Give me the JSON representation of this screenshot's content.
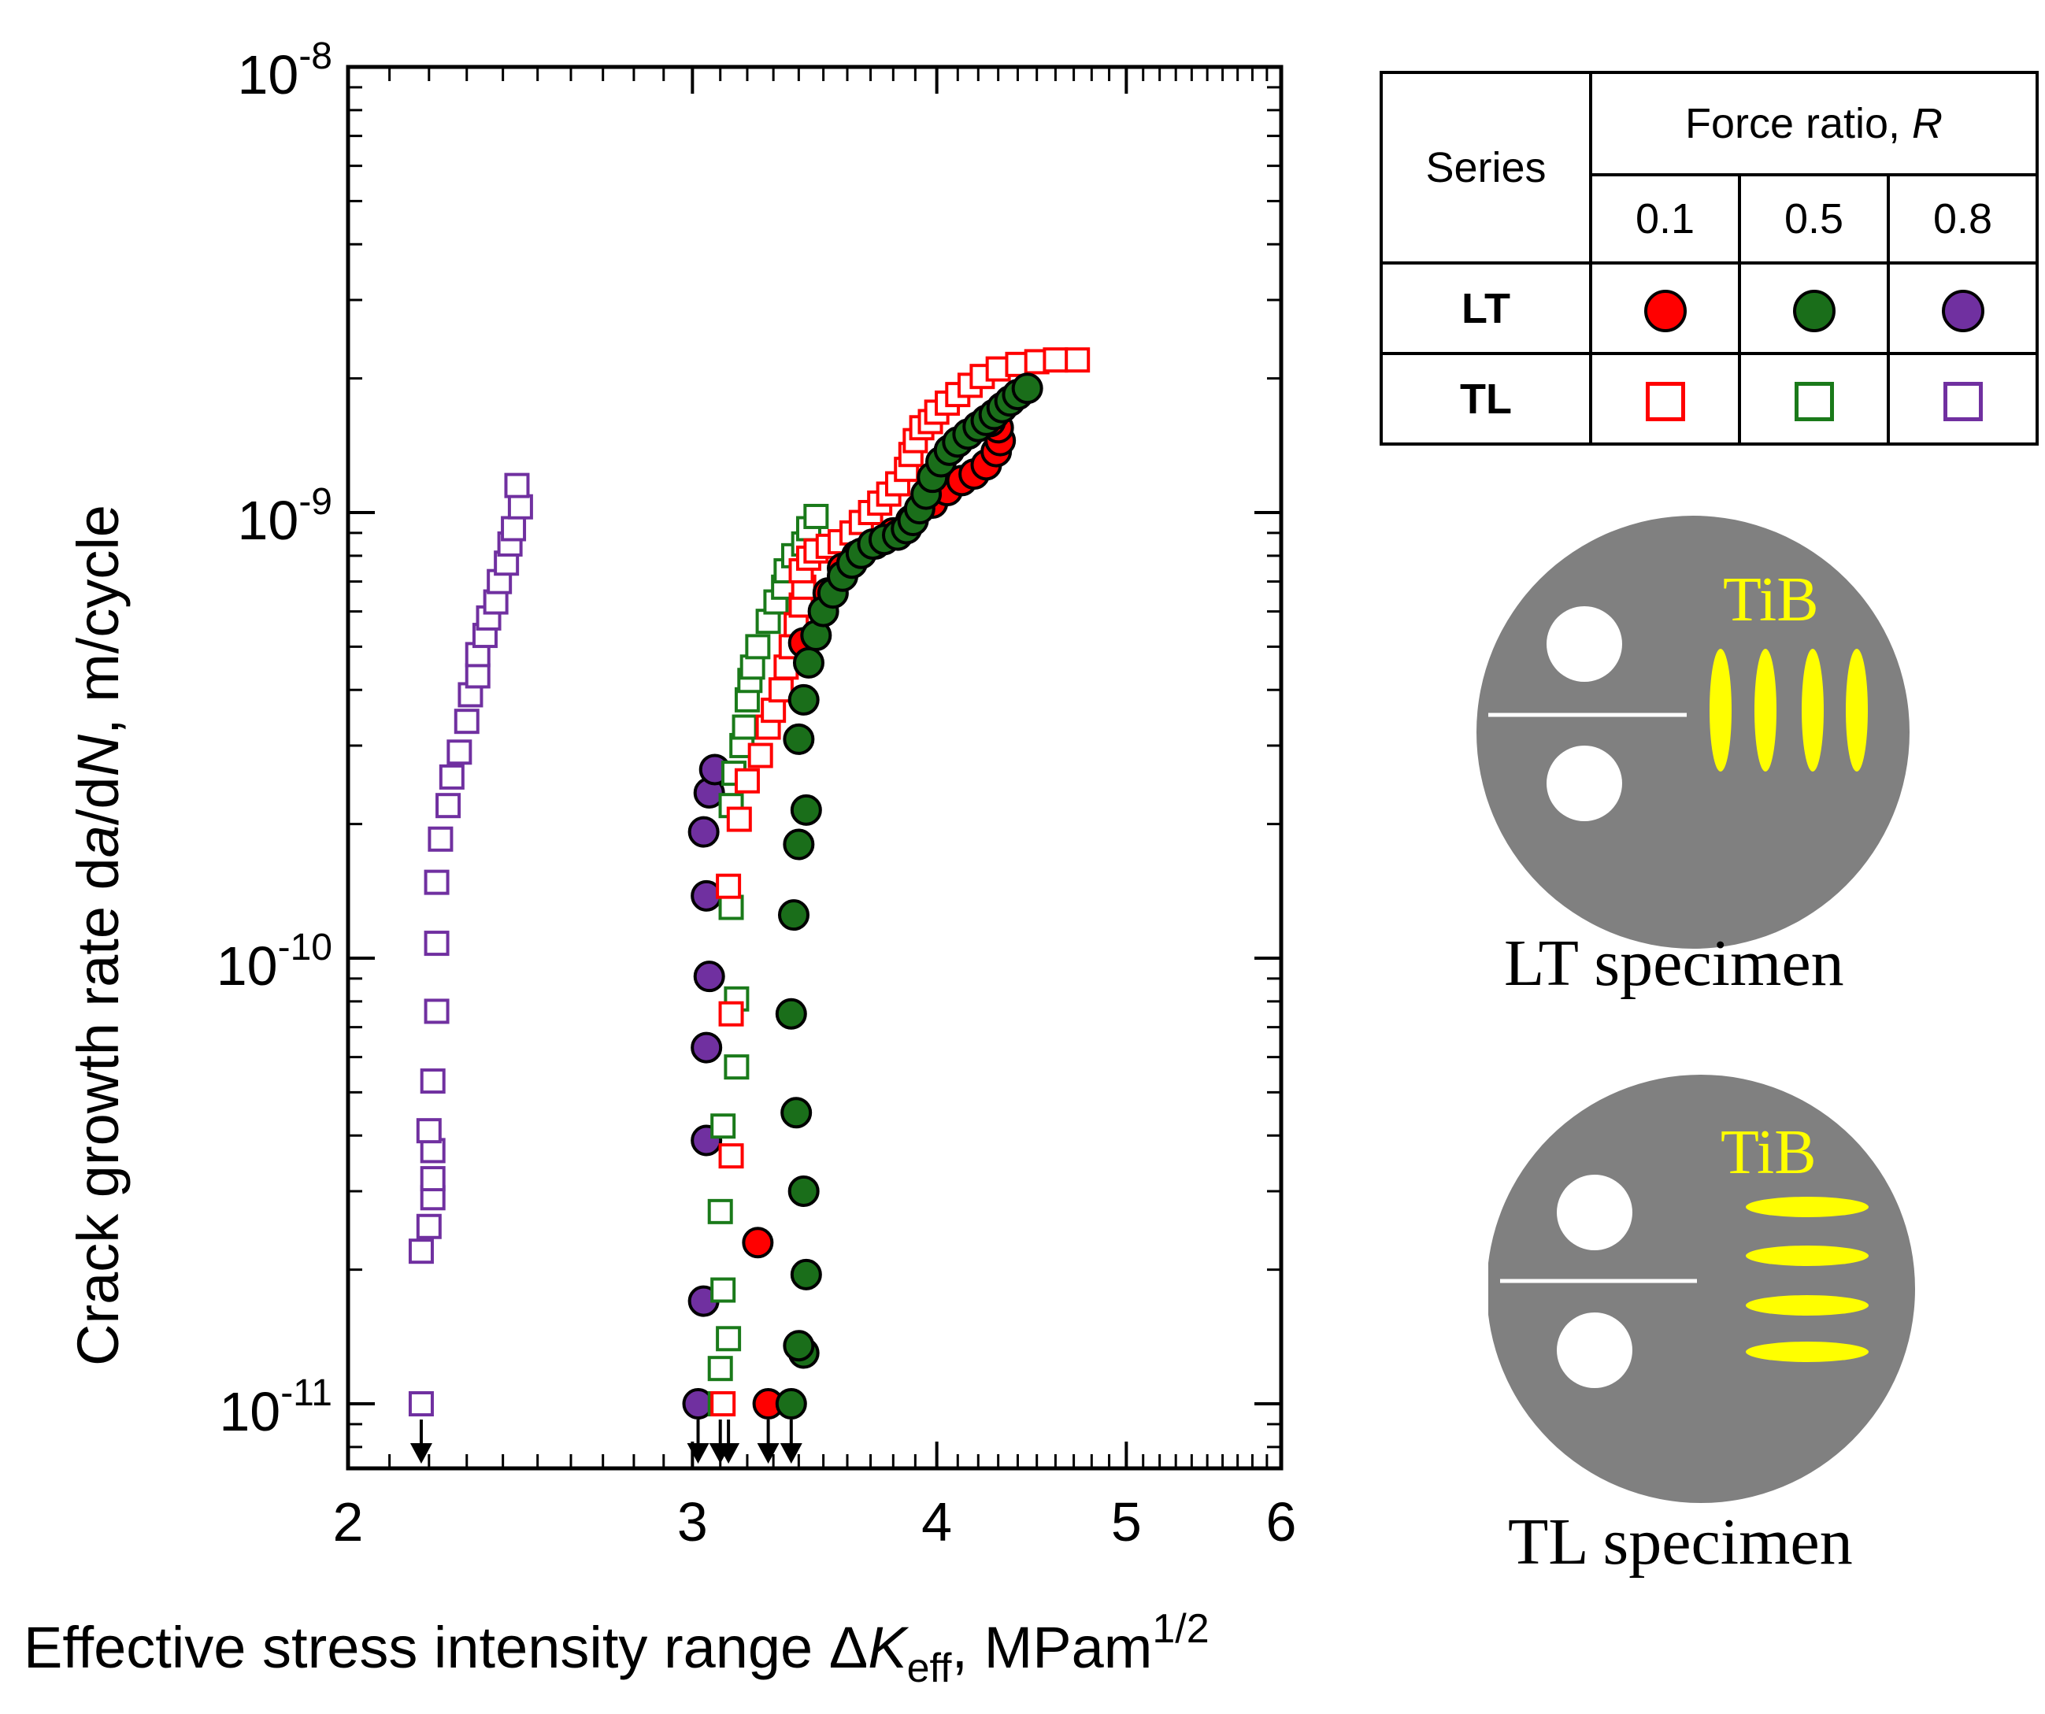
{
  "chart_data": {
    "type": "scatter",
    "xscale": "log",
    "yscale": "log",
    "xlim": [
      2,
      6
    ],
    "ylim": [
      1e-11,
      1e-08
    ],
    "xlabel": {
      "main": "Effective stress intensity range Δ",
      "k": "K",
      "k_sub": "eff",
      "unit": ", MPam",
      "unit_sup": "1/2"
    },
    "ylabel": {
      "pre": "Crack growth rate d",
      "a": "a",
      "mid": "/d",
      "n": "N",
      "post": ", m/cycle"
    },
    "xticks": [
      {
        "value": 2,
        "label": "2"
      },
      {
        "value": 3,
        "label": "3"
      },
      {
        "value": 4,
        "label": "4"
      },
      {
        "value": 5,
        "label": "5"
      },
      {
        "value": 6,
        "label": "6"
      }
    ],
    "yticks": [
      {
        "value": 1e-11,
        "base": "10",
        "exp": "-11"
      },
      {
        "value": 1e-10,
        "base": "10",
        "exp": "-10"
      },
      {
        "value": 1e-09,
        "base": "10",
        "exp": "-9"
      },
      {
        "value": 1e-08,
        "base": "10",
        "exp": "-8"
      }
    ],
    "threshold_arrows": [
      2.18,
      3.02,
      3.1,
      3.13,
      3.28,
      3.37
    ],
    "series": [
      {
        "name": "TL, R=0.8",
        "marker": "square",
        "color": "#7030a0",
        "points": [
          [
            2.18,
            1e-11
          ],
          [
            2.18,
            2.2e-11
          ],
          [
            2.2,
            2.5e-11
          ],
          [
            2.21,
            2.9e-11
          ],
          [
            2.21,
            3.2e-11
          ],
          [
            2.21,
            3.7e-11
          ],
          [
            2.2,
            4.1e-11
          ],
          [
            2.21,
            5.3e-11
          ],
          [
            2.22,
            7.6e-11
          ],
          [
            2.22,
            1.08e-10
          ],
          [
            2.22,
            1.48e-10
          ],
          [
            2.23,
            1.85e-10
          ],
          [
            2.25,
            2.2e-10
          ],
          [
            2.26,
            2.55e-10
          ],
          [
            2.28,
            2.9e-10
          ],
          [
            2.3,
            3.4e-10
          ],
          [
            2.31,
            3.9e-10
          ],
          [
            2.33,
            4.3e-10
          ],
          [
            2.33,
            4.8e-10
          ],
          [
            2.35,
            5.3e-10
          ],
          [
            2.36,
            5.8e-10
          ],
          [
            2.38,
            6.3e-10
          ],
          [
            2.39,
            7e-10
          ],
          [
            2.41,
            7.7e-10
          ],
          [
            2.42,
            8.5e-10
          ],
          [
            2.43,
            9.2e-10
          ],
          [
            2.45,
            1.03e-09
          ],
          [
            2.44,
            1.15e-09
          ]
        ]
      },
      {
        "name": "LT, R=0.8",
        "marker": "circle",
        "color": "#7030a0",
        "points": [
          [
            3.02,
            1e-11
          ],
          [
            3.04,
            1.7e-11
          ],
          [
            3.05,
            3.9e-11
          ],
          [
            3.05,
            6.3e-11
          ],
          [
            3.06,
            9.1e-11
          ],
          [
            3.05,
            1.38e-10
          ],
          [
            3.04,
            1.92e-10
          ],
          [
            3.06,
            2.35e-10
          ],
          [
            3.08,
            2.65e-10
          ]
        ]
      },
      {
        "name": "TL, R=0.5",
        "marker": "square",
        "color": "#1a7a1a",
        "points": [
          [
            3.1,
            1e-11
          ],
          [
            3.1,
            1.2e-11
          ],
          [
            3.13,
            1.4e-11
          ],
          [
            3.11,
            1.8e-11
          ],
          [
            3.1,
            2.7e-11
          ],
          [
            3.11,
            4.2e-11
          ],
          [
            3.16,
            5.7e-11
          ],
          [
            3.16,
            8.1e-11
          ],
          [
            3.14,
            1.3e-10
          ],
          [
            3.14,
            2.2e-10
          ],
          [
            3.15,
            2.6e-10
          ],
          [
            3.18,
            3e-10
          ],
          [
            3.19,
            3.3e-10
          ],
          [
            3.2,
            3.8e-10
          ],
          [
            3.21,
            4.2e-10
          ],
          [
            3.22,
            4.5e-10
          ],
          [
            3.24,
            5e-10
          ],
          [
            3.28,
            5.7e-10
          ],
          [
            3.31,
            6.3e-10
          ],
          [
            3.34,
            6.8e-10
          ],
          [
            3.35,
            7.4e-10
          ],
          [
            3.38,
            8e-10
          ],
          [
            3.42,
            8.5e-10
          ],
          [
            3.44,
            9.2e-10
          ],
          [
            3.47,
            9.8e-10
          ]
        ]
      },
      {
        "name": "TL, R=0.1",
        "marker": "square",
        "color": "#ff0000",
        "points": [
          [
            3.11,
            1e-11
          ],
          [
            3.14,
            3.6e-11
          ],
          [
            3.14,
            7.5e-11
          ],
          [
            3.13,
            1.45e-10
          ],
          [
            3.17,
            2.05e-10
          ],
          [
            3.2,
            2.5e-10
          ],
          [
            3.25,
            2.85e-10
          ],
          [
            3.28,
            3.3e-10
          ],
          [
            3.3,
            3.6e-10
          ],
          [
            3.33,
            4e-10
          ],
          [
            3.35,
            4.5e-10
          ],
          [
            3.37,
            5e-10
          ],
          [
            3.39,
            5.6e-10
          ],
          [
            3.41,
            6.2e-10
          ],
          [
            3.42,
            6.8e-10
          ],
          [
            3.41,
            7.4e-10
          ],
          [
            3.44,
            7.9e-10
          ],
          [
            3.47,
            8.2e-10
          ],
          [
            3.52,
            8.4e-10
          ],
          [
            3.57,
            8.6e-10
          ],
          [
            3.62,
            9e-10
          ],
          [
            3.66,
            9.5e-10
          ],
          [
            3.7,
            1e-09
          ],
          [
            3.74,
            1.05e-09
          ],
          [
            3.78,
            1.1e-09
          ],
          [
            3.82,
            1.16e-09
          ],
          [
            3.86,
            1.25e-09
          ],
          [
            3.88,
            1.35e-09
          ],
          [
            3.9,
            1.45e-09
          ],
          [
            3.93,
            1.55e-09
          ],
          [
            3.97,
            1.6e-09
          ],
          [
            4.0,
            1.68e-09
          ],
          [
            4.05,
            1.76e-09
          ],
          [
            4.1,
            1.84e-09
          ],
          [
            4.16,
            1.93e-09
          ],
          [
            4.22,
            2.02e-09
          ],
          [
            4.3,
            2.1e-09
          ],
          [
            4.4,
            2.15e-09
          ],
          [
            4.5,
            2.18e-09
          ],
          [
            4.6,
            2.2e-09
          ],
          [
            4.72,
            2.2e-09
          ]
        ]
      },
      {
        "name": "LT, R=0.1",
        "marker": "circle",
        "color": "#ff0000",
        "points": [
          [
            3.28,
            1e-11
          ],
          [
            3.24,
            2.3e-11
          ],
          [
            3.42,
            5.1e-10
          ],
          [
            3.52,
            6.6e-10
          ],
          [
            3.58,
            7.5e-10
          ],
          [
            3.64,
            8e-10
          ],
          [
            3.72,
            8.5e-10
          ],
          [
            3.8,
            9e-10
          ],
          [
            3.88,
            9.6e-10
          ],
          [
            3.98,
            1.05e-09
          ],
          [
            4.05,
            1.12e-09
          ],
          [
            4.12,
            1.18e-09
          ],
          [
            4.18,
            1.22e-09
          ],
          [
            4.24,
            1.28e-09
          ],
          [
            4.29,
            1.37e-09
          ],
          [
            4.31,
            1.45e-09
          ],
          [
            4.3,
            1.55e-09
          ],
          [
            4.26,
            1.6e-09
          ]
        ]
      },
      {
        "name": "LT, R=0.5",
        "marker": "circle",
        "color": "#1a6e1a",
        "points": [
          [
            3.37,
            1e-11
          ],
          [
            3.42,
            1.3e-11
          ],
          [
            3.4,
            1.35e-11
          ],
          [
            3.43,
            1.95e-11
          ],
          [
            3.42,
            3e-11
          ],
          [
            3.39,
            4.5e-11
          ],
          [
            3.37,
            7.5e-11
          ],
          [
            3.38,
            1.25e-10
          ],
          [
            3.4,
            1.8e-10
          ],
          [
            3.43,
            2.15e-10
          ],
          [
            3.4,
            3.1e-10
          ],
          [
            3.42,
            3.8e-10
          ],
          [
            3.44,
            4.6e-10
          ],
          [
            3.47,
            5.3e-10
          ],
          [
            3.5,
            6e-10
          ],
          [
            3.54,
            6.6e-10
          ],
          [
            3.58,
            7.2e-10
          ],
          [
            3.62,
            7.7e-10
          ],
          [
            3.66,
            8.1e-10
          ],
          [
            3.71,
            8.5e-10
          ],
          [
            3.76,
            8.7e-10
          ],
          [
            3.82,
            8.9e-10
          ],
          [
            3.86,
            9.2e-10
          ],
          [
            3.89,
            9.6e-10
          ],
          [
            3.92,
            1.02e-09
          ],
          [
            3.95,
            1.1e-09
          ],
          [
            3.98,
            1.2e-09
          ],
          [
            4.02,
            1.3e-09
          ],
          [
            4.06,
            1.38e-09
          ],
          [
            4.1,
            1.44e-09
          ],
          [
            4.15,
            1.5e-09
          ],
          [
            4.2,
            1.56e-09
          ],
          [
            4.24,
            1.61e-09
          ],
          [
            4.28,
            1.66e-09
          ],
          [
            4.32,
            1.72e-09
          ],
          [
            4.36,
            1.78e-09
          ],
          [
            4.4,
            1.84e-09
          ],
          [
            4.45,
            1.9e-09
          ]
        ]
      }
    ]
  },
  "legend": {
    "series_header": "Series",
    "force_ratio_label": "Force ratio, ",
    "force_ratio_symbol": "R",
    "r_values": [
      "0.1",
      "0.5",
      "0.8"
    ],
    "rows": [
      "LT",
      "TL"
    ],
    "colors": {
      "red": "#ff0000",
      "green": "#1a6e1a",
      "purple": "#7030a0"
    }
  },
  "specimens": {
    "lt_caption": "LT specimen",
    "tl_caption": "TL specimen",
    "tib_label": "TiB",
    "disc_color": "#808080",
    "tib_color": "#ffff00"
  }
}
